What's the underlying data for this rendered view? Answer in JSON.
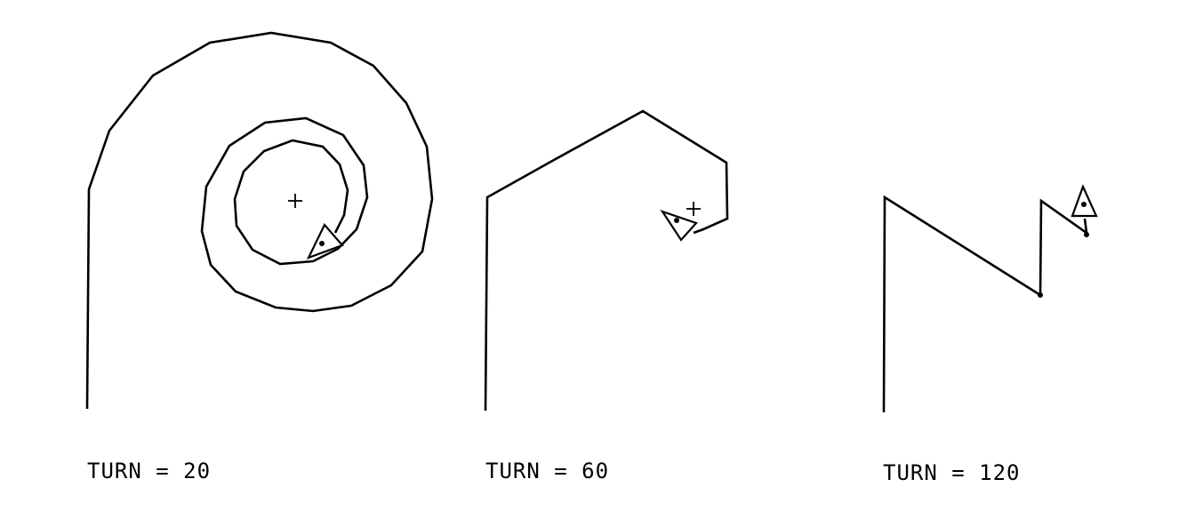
{
  "panels": [
    {
      "id": "turn-20",
      "caption": "TURN = 20"
    },
    {
      "id": "turn-60",
      "caption": "TURN = 60"
    },
    {
      "id": "turn-120",
      "caption": "TURN = 120"
    }
  ],
  "colors": {
    "ink": "#000000",
    "background": "#ffffff"
  },
  "icons": {
    "turtle": "turtle-triangle-icon",
    "center": "plus-marker-icon"
  }
}
